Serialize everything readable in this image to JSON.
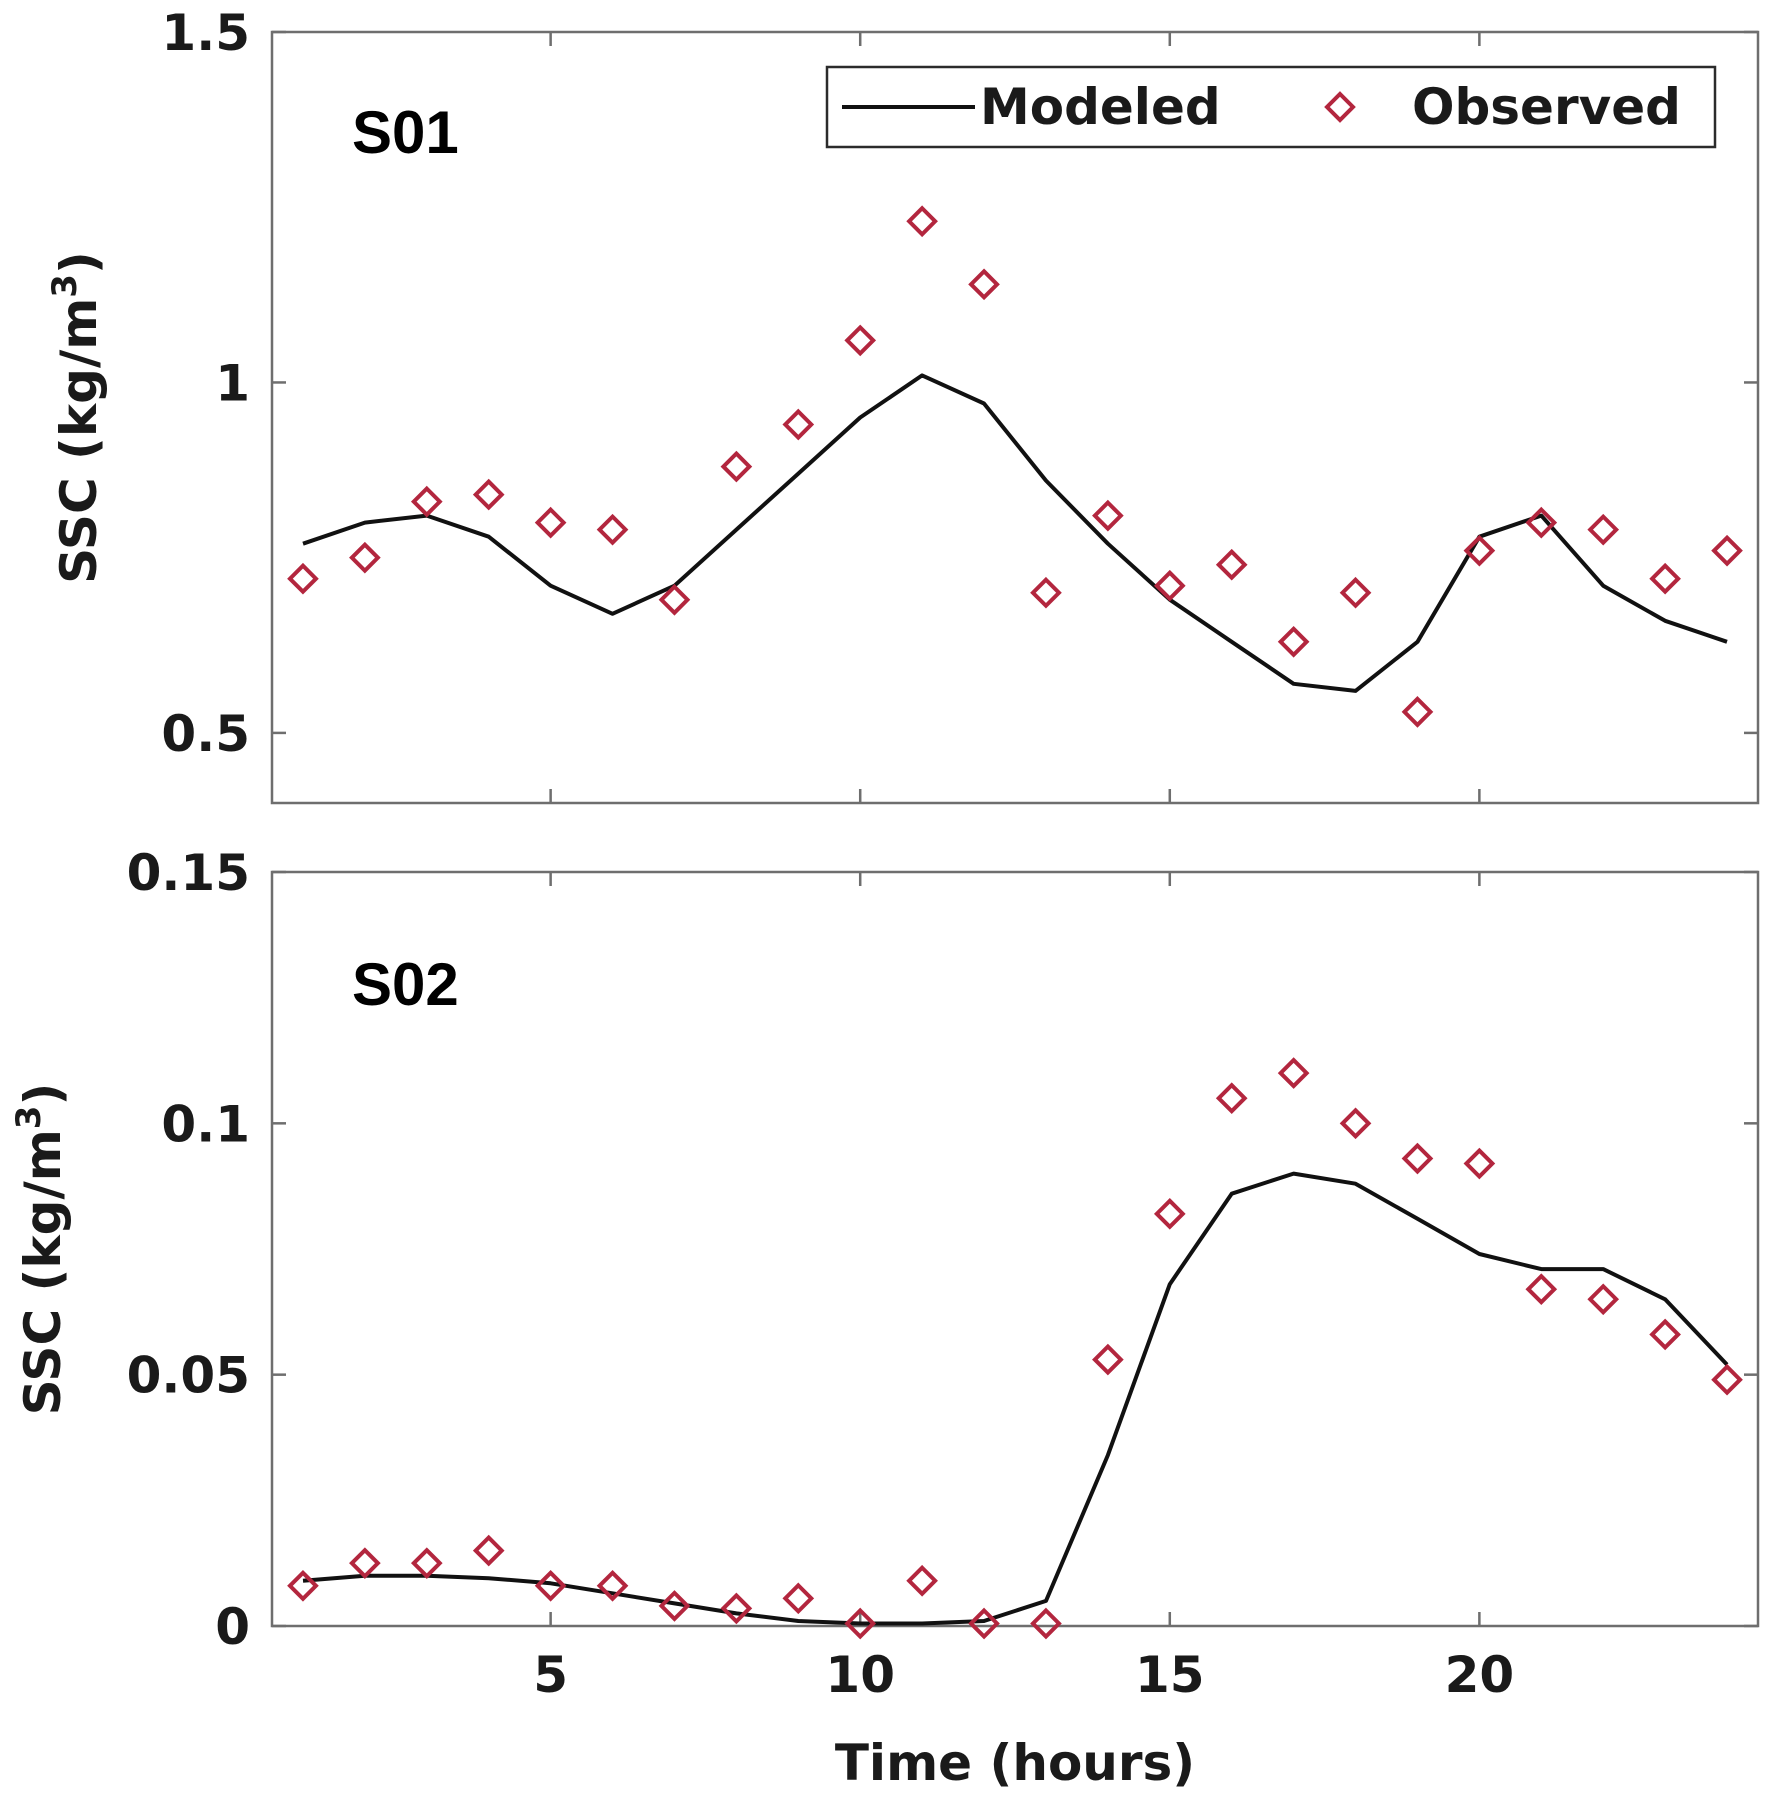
{
  "chart_data": [
    {
      "type": "line",
      "panel_label": "S01",
      "title": "",
      "xlabel": "",
      "ylabel": "SSC (kg/m",
      "ylabel_superscript": "3",
      "ylabel_close": ")",
      "xlim": [
        0.5,
        24.5
      ],
      "ylim": [
        0.4,
        1.5
      ],
      "xticks": [
        5,
        10,
        15,
        20
      ],
      "yticks": [
        0.5,
        1,
        1.5
      ],
      "ytick_labels": [
        "0.5",
        "1",
        "1.5"
      ],
      "show_xtick_labels": false,
      "legend": {
        "position": "top-right",
        "entries": [
          "Modeled",
          "Observed"
        ]
      },
      "series": [
        {
          "name": "Modeled",
          "style": "line",
          "color": "#111111",
          "x": [
            1,
            2,
            3,
            4,
            5,
            6,
            7,
            8,
            9,
            10,
            11,
            12,
            13,
            14,
            15,
            16,
            17,
            18,
            19,
            20,
            21,
            22,
            23,
            24
          ],
          "y": [
            0.77,
            0.8,
            0.81,
            0.78,
            0.71,
            0.67,
            0.71,
            0.79,
            0.87,
            0.95,
            1.01,
            0.97,
            0.86,
            0.77,
            0.69,
            0.63,
            0.57,
            0.56,
            0.63,
            0.78,
            0.81,
            0.71,
            0.66,
            0.63
          ]
        },
        {
          "name": "Observed",
          "style": "marker",
          "marker": "diamond",
          "color": "#b3263e",
          "x": [
            1,
            2,
            3,
            4,
            5,
            6,
            7,
            8,
            9,
            10,
            11,
            12,
            13,
            14,
            15,
            16,
            17,
            18,
            19,
            20,
            21,
            22,
            23,
            24
          ],
          "y": [
            0.72,
            0.75,
            0.83,
            0.84,
            0.8,
            0.79,
            0.69,
            0.88,
            0.94,
            1.06,
            1.23,
            1.14,
            0.7,
            0.81,
            0.71,
            0.74,
            0.63,
            0.7,
            0.53,
            0.76,
            0.8,
            0.79,
            0.72,
            0.76
          ]
        }
      ]
    },
    {
      "type": "line",
      "panel_label": "S02",
      "title": "",
      "xlabel": "Time (hours)",
      "ylabel": "SSC (kg/m",
      "ylabel_superscript": "3",
      "ylabel_close": ")",
      "xlim": [
        0.5,
        24.5
      ],
      "ylim": [
        0,
        0.15
      ],
      "xticks": [
        5,
        10,
        15,
        20
      ],
      "xtick_labels": [
        "5",
        "10",
        "15",
        "20"
      ],
      "yticks": [
        0,
        0.05,
        0.1,
        0.15
      ],
      "ytick_labels": [
        "0",
        "0.05",
        "0.1",
        "0.15"
      ],
      "show_xtick_labels": true,
      "series": [
        {
          "name": "Modeled",
          "style": "line",
          "color": "#111111",
          "x": [
            1,
            2,
            3,
            4,
            5,
            6,
            7,
            8,
            9,
            10,
            11,
            12,
            13,
            14,
            15,
            16,
            17,
            18,
            19,
            20,
            21,
            22,
            23,
            24
          ],
          "y": [
            0.009,
            0.01,
            0.01,
            0.0095,
            0.0085,
            0.0065,
            0.0045,
            0.0025,
            0.001,
            0.0005,
            0.0005,
            0.001,
            0.005,
            0.034,
            0.068,
            0.086,
            0.09,
            0.088,
            0.081,
            0.074,
            0.071,
            0.071,
            0.065,
            0.052
          ]
        },
        {
          "name": "Observed",
          "style": "marker",
          "marker": "diamond",
          "color": "#b3263e",
          "x": [
            1,
            2,
            3,
            4,
            5,
            6,
            7,
            8,
            9,
            10,
            11,
            12,
            13,
            14,
            15,
            16,
            17,
            18,
            19,
            20,
            21,
            22,
            23,
            24
          ],
          "y": [
            0.008,
            0.0125,
            0.0125,
            0.015,
            0.008,
            0.008,
            0.004,
            0.0035,
            0.0055,
            0.0005,
            0.009,
            0.0005,
            0.0005,
            0.053,
            0.082,
            0.105,
            0.11,
            0.1,
            0.093,
            0.092,
            0.067,
            0.065,
            0.058,
            0.049
          ]
        }
      ]
    }
  ]
}
